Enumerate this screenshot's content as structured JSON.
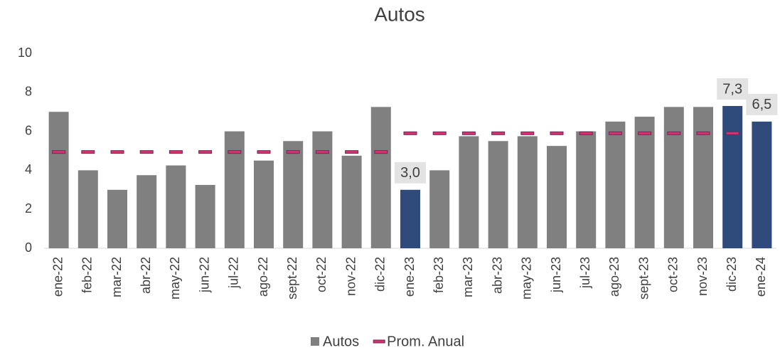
{
  "chart_data": {
    "type": "bar",
    "title": "Autos",
    "categories": [
      "ene-22",
      "feb-22",
      "mar-22",
      "abr-22",
      "may-22",
      "jun-22",
      "jul-22",
      "ago-22",
      "sept-22",
      "oct-22",
      "nov-22",
      "dic-22",
      "ene-23",
      "feb-23",
      "mar-23",
      "abr-23",
      "may-23",
      "jun-23",
      "jul-23",
      "ago-23",
      "sept-23",
      "oct-23",
      "nov-23",
      "dic-23",
      "ene-24"
    ],
    "series": [
      {
        "name": "Autos",
        "type": "bar",
        "color": "#808080",
        "colors": [
          "#808080",
          "#808080",
          "#808080",
          "#808080",
          "#808080",
          "#808080",
          "#808080",
          "#808080",
          "#808080",
          "#808080",
          "#808080",
          "#808080",
          "#2f4b7c",
          "#808080",
          "#808080",
          "#808080",
          "#808080",
          "#808080",
          "#808080",
          "#808080",
          "#808080",
          "#808080",
          "#808080",
          "#2f4b7c",
          "#2f4b7c"
        ],
        "values": [
          7.0,
          4.0,
          3.0,
          3.75,
          4.25,
          3.25,
          6.0,
          4.5,
          5.5,
          6.0,
          4.75,
          7.25,
          3.0,
          4.0,
          5.75,
          5.5,
          5.75,
          5.25,
          6.0,
          6.5,
          6.75,
          7.25,
          7.25,
          7.3,
          6.5
        ],
        "value_labels": [
          null,
          null,
          null,
          null,
          null,
          null,
          null,
          null,
          null,
          null,
          null,
          null,
          "3,0",
          null,
          null,
          null,
          null,
          null,
          null,
          null,
          null,
          null,
          null,
          "7,3",
          "6,5"
        ]
      },
      {
        "name": "Prom. Anual",
        "type": "marker",
        "color": "#d6336c",
        "values": [
          4.94,
          4.94,
          4.94,
          4.94,
          4.94,
          4.94,
          4.94,
          4.94,
          4.94,
          4.94,
          4.94,
          4.94,
          5.9,
          5.9,
          5.9,
          5.9,
          5.9,
          5.9,
          5.9,
          5.9,
          5.9,
          5.9,
          5.9,
          5.9,
          null
        ]
      }
    ],
    "ylim": [
      0,
      10
    ],
    "yticks": [
      0,
      2,
      4,
      6,
      8,
      10
    ],
    "grid": false,
    "legend": "bottom"
  }
}
